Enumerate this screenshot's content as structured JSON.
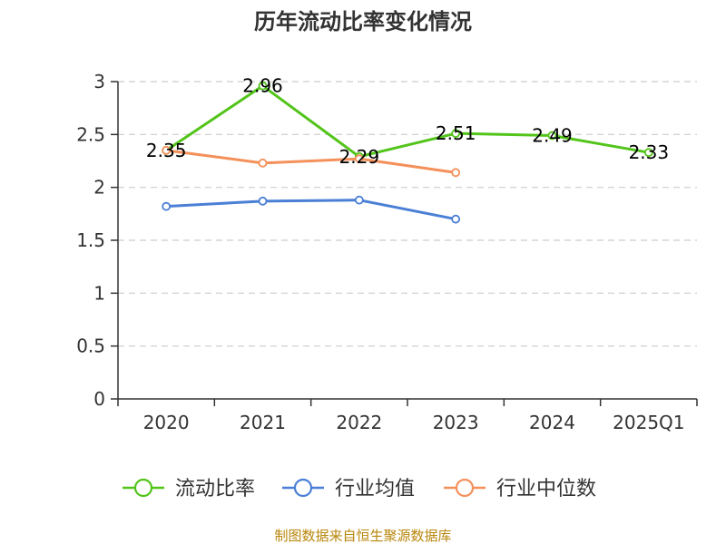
{
  "chart_data": {
    "type": "line",
    "title": "历年流动比率变化情况",
    "categories": [
      "2020",
      "2021",
      "2022",
      "2023",
      "2024",
      "2025Q1"
    ],
    "ylim": [
      0,
      3
    ],
    "yticks": [
      "0",
      "0.5",
      "1",
      "1.5",
      "2",
      "2.5",
      "3"
    ],
    "grid": true,
    "legend_position": "bottom",
    "series": [
      {
        "name": "流动比率",
        "color": "#52c41a",
        "values": [
          2.35,
          2.96,
          2.29,
          2.51,
          2.49,
          2.33
        ],
        "labels": [
          "2.35",
          "2.96",
          "2.29",
          "2.51",
          "2.49",
          "2.33"
        ]
      },
      {
        "name": "行业均值",
        "color": "#4a7fd6",
        "values": [
          1.82,
          1.87,
          1.88,
          1.7,
          null,
          null
        ]
      },
      {
        "name": "行业中位数",
        "color": "#f4905a",
        "values": [
          2.35,
          2.23,
          2.27,
          2.14,
          null,
          null
        ]
      }
    ],
    "source": "制图数据来自恒生聚源数据库"
  }
}
